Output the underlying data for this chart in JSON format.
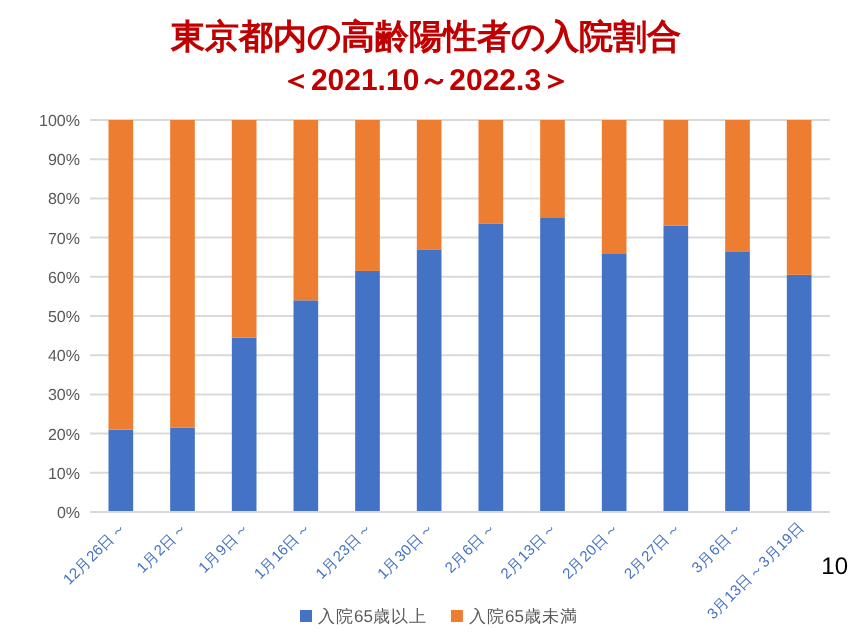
{
  "chart_data": {
    "type": "bar",
    "stacked": true,
    "title": "東京都内の高齢陽性者の入院割合",
    "subtitle": "＜2021.10～2022.3＞",
    "categories": [
      "12月26日～",
      "1月2日～",
      "1月9日～",
      "1月16日～",
      "1月23日～",
      "1月30日～",
      "2月6日～",
      "2月13日～",
      "2月20日～",
      "2月27日～",
      "3月6日～",
      "3月13日～3月19日"
    ],
    "series": [
      {
        "name": "入院65歳以上",
        "color": "#4472c4",
        "values": [
          21,
          21.5,
          44.5,
          54,
          61.5,
          67,
          73.5,
          75,
          66,
          73,
          66.5,
          60.5
        ]
      },
      {
        "name": "入院65歳未満",
        "color": "#ed7d31",
        "values": [
          79,
          78.5,
          55.5,
          46,
          38.5,
          33,
          26.5,
          25,
          34,
          27,
          33.5,
          39.5
        ]
      }
    ],
    "ylim": [
      0,
      100
    ],
    "yticks": [
      {
        "value": 0,
        "label": "0%"
      },
      {
        "value": 10,
        "label": "10%"
      },
      {
        "value": 20,
        "label": "20%"
      },
      {
        "value": 30,
        "label": "30%"
      },
      {
        "value": 40,
        "label": "40%"
      },
      {
        "value": 50,
        "label": "50%"
      },
      {
        "value": 60,
        "label": "60%"
      },
      {
        "value": 70,
        "label": "70%"
      },
      {
        "value": 80,
        "label": "80%"
      },
      {
        "value": 90,
        "label": "90%"
      },
      {
        "value": 100,
        "label": "100%"
      }
    ],
    "grid": "y",
    "legend": "bottom",
    "annotations": [
      "10"
    ]
  }
}
